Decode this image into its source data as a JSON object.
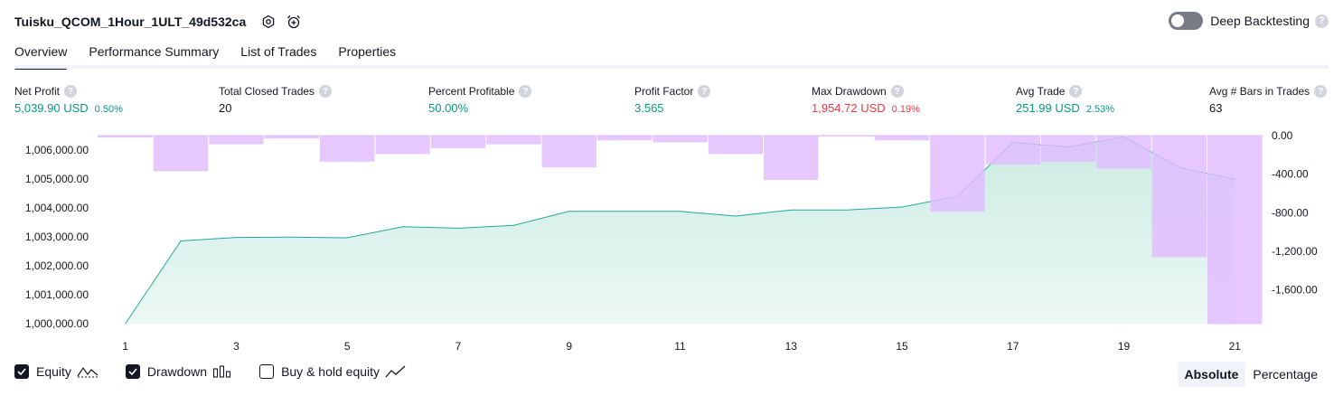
{
  "header": {
    "title": "Tuisku_QCOM_1Hour_1ULT_49d532ca",
    "deep_backtesting_label": "Deep Backtesting",
    "help_glyph": "?"
  },
  "tabs": [
    {
      "label": "Overview",
      "active": true
    },
    {
      "label": "Performance Summary",
      "active": false
    },
    {
      "label": "List of Trades",
      "active": false
    },
    {
      "label": "Properties",
      "active": false
    }
  ],
  "metrics": [
    {
      "label": "Net Profit",
      "value": "5,039.90 USD",
      "pct": "0.50%",
      "color": "green"
    },
    {
      "label": "Total Closed Trades",
      "value": "20",
      "pct": "",
      "color": "dark"
    },
    {
      "label": "Percent Profitable",
      "value": "50.00%",
      "pct": "",
      "color": "green"
    },
    {
      "label": "Profit Factor",
      "value": "3.565",
      "pct": "",
      "color": "green"
    },
    {
      "label": "Max Drawdown",
      "value": "1,954.72 USD",
      "pct": "0.19%",
      "color": "red"
    },
    {
      "label": "Avg Trade",
      "value": "251.99 USD",
      "pct": "2.53%",
      "color": "green"
    },
    {
      "label": "Avg # Bars in Trades",
      "value": "63",
      "pct": "",
      "color": "dark"
    }
  ],
  "legend": {
    "equity_label": "Equity",
    "drawdown_label": "Drawdown",
    "buy_hold_label": "Buy & hold equity",
    "equity_checked": true,
    "drawdown_checked": true,
    "buy_hold_checked": false
  },
  "modes": {
    "absolute_label": "Absolute",
    "percentage_label": "Percentage",
    "active": "Absolute"
  },
  "colors": {
    "equity_line": "#22ab94",
    "equity_fill": "#c9ebe2",
    "drawdown": "#e1bcff",
    "accent": "#089981",
    "negative": "#f23645"
  },
  "chart_data": {
    "type": "area",
    "x_ticks": [
      1,
      3,
      5,
      7,
      9,
      11,
      13,
      15,
      17,
      19,
      21
    ],
    "y_left_ticks": [
      "1,000,000.00",
      "1,001,000.00",
      "1,002,000.00",
      "1,003,000.00",
      "1,004,000.00",
      "1,005,000.00",
      "1,006,000.00"
    ],
    "y_right_ticks": [
      "0.00",
      "-400.00",
      "-800.00",
      "-1,200.00",
      "-1,600.00"
    ],
    "ylim_left": [
      1000000,
      1006500
    ],
    "ylim_right": [
      -1950,
      0
    ],
    "series": [
      {
        "kind": "equity_line",
        "x": [
          1,
          2,
          3,
          4,
          5,
          6,
          7,
          8,
          9,
          10,
          11,
          12,
          13,
          14,
          15,
          16,
          17,
          18,
          19,
          20,
          21
        ],
        "values": [
          1000000,
          1002860,
          1002980,
          1002990,
          1002970,
          1003350,
          1003300,
          1003400,
          1003880,
          1003880,
          1003880,
          1003720,
          1003930,
          1003930,
          1004030,
          1004400,
          1006260,
          1006110,
          1006460,
          1005400,
          1004990
        ]
      },
      {
        "kind": "drawdown_bars",
        "x": [
          1,
          2,
          3,
          4,
          5,
          6,
          7,
          8,
          9,
          10,
          11,
          12,
          13,
          14,
          15,
          16,
          17,
          18,
          19,
          20,
          21
        ],
        "values": [
          -20,
          -370,
          -90,
          -30,
          -270,
          -190,
          -130,
          -90,
          -330,
          -50,
          -70,
          -190,
          -460,
          -10,
          -50,
          -790,
          -300,
          -270,
          -340,
          -1260,
          -1955
        ]
      }
    ]
  }
}
